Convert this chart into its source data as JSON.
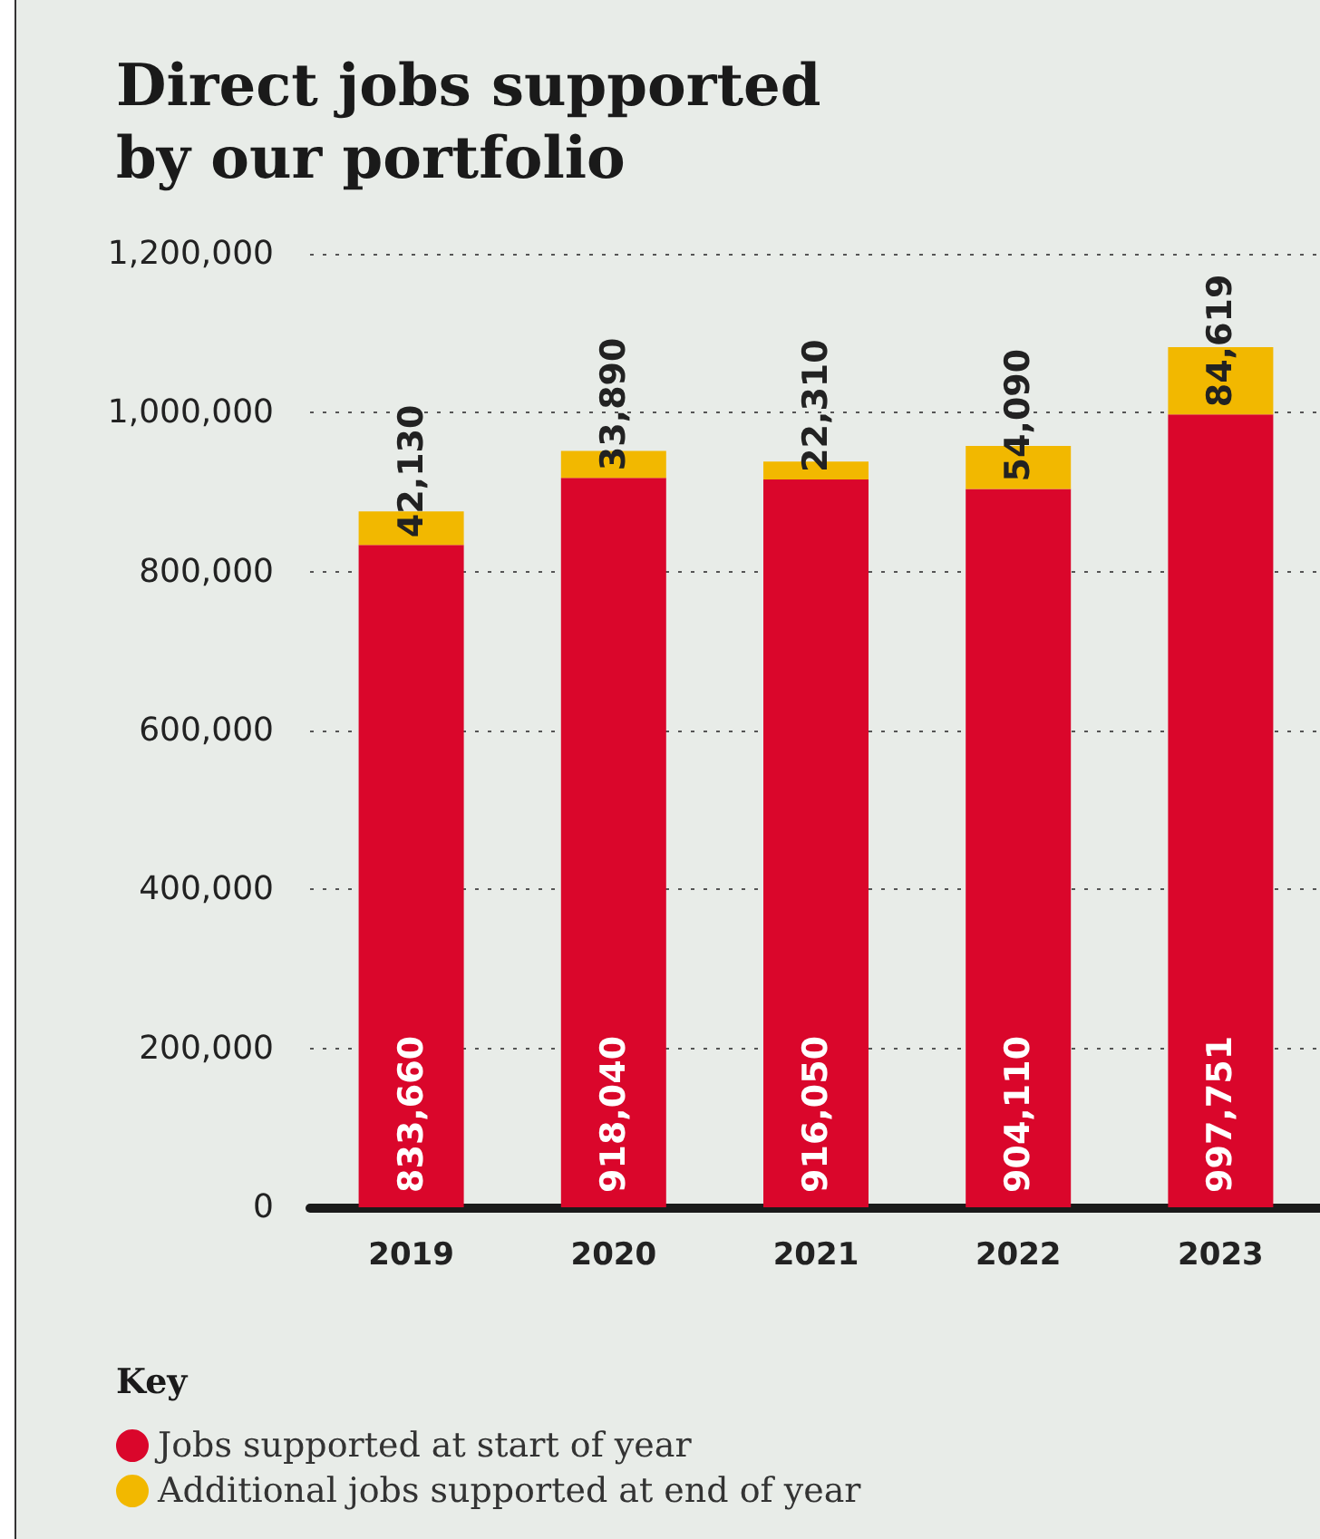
{
  "chart_data": {
    "type": "bar",
    "title": "Direct jobs supported\nby our portfolio",
    "legend_title": "Key",
    "categories": [
      "2019",
      "2020",
      "2021",
      "2022",
      "2023"
    ],
    "series": [
      {
        "name": "Jobs supported at start of year",
        "color": "#da062b",
        "values": [
          833660,
          918040,
          916050,
          904110,
          997751
        ],
        "value_labels": [
          "833,660",
          "918,040",
          "916,050",
          "904,110",
          "997,751"
        ]
      },
      {
        "name": "Additional jobs supported at end of year",
        "color": "#f2b800",
        "values": [
          42130,
          33890,
          22310,
          54090,
          84619
        ],
        "value_labels": [
          "42,130",
          "33,890",
          "22,310",
          "54,090",
          "84,619"
        ]
      }
    ],
    "stacked": true,
    "ylim": [
      0,
      1200000
    ],
    "yticks": [
      0,
      {
        "value": 200000,
        "label": "200,000"
      },
      {
        "value": 400000,
        "label": "400,000"
      },
      {
        "value": 600000,
        "label": "600,000"
      },
      {
        "value": 800000,
        "label": "800,000"
      },
      {
        "value": 1000000,
        "label": "1,000,000"
      },
      {
        "value": 1200000,
        "label": "1,200,000"
      }
    ],
    "grid": "y",
    "legend": "bottom left"
  }
}
